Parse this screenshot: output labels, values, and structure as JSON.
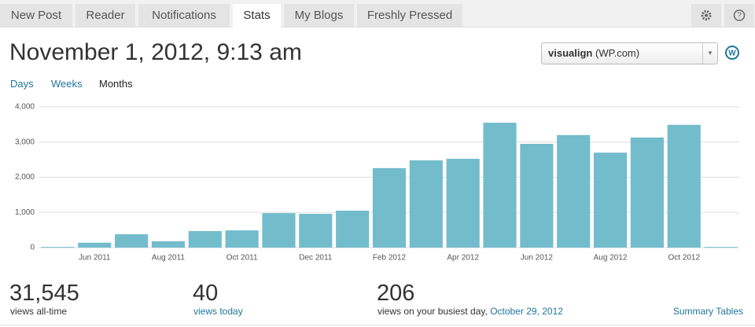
{
  "tabs": [
    "New Post",
    "Reader",
    "Notifications",
    "Stats",
    "My Blogs",
    "Freshly Pressed"
  ],
  "header": {
    "title": "November 1, 2012, 9:13 am"
  },
  "blog_select": {
    "name": "visualign",
    "host": "(WP.com)"
  },
  "periods": [
    "Days",
    "Weeks",
    "Months"
  ],
  "chart_data": {
    "type": "bar",
    "categories": [
      null,
      "Jun 2011",
      null,
      "Aug 2011",
      null,
      "Oct 2011",
      null,
      "Dec 2011",
      null,
      "Feb 2012",
      null,
      "Apr 2012",
      null,
      "Jun 2012",
      null,
      "Aug 2012",
      null,
      "Oct 2012",
      null
    ],
    "values": [
      20,
      140,
      380,
      180,
      470,
      490,
      980,
      960,
      1050,
      2260,
      2480,
      2525,
      3550,
      2950,
      3200,
      2700,
      3130,
      3490,
      20
    ],
    "color": "#73bccc",
    "ylim": [
      0,
      4000
    ],
    "yticks": [
      0,
      {
        "value": 1000,
        "label": "1,000"
      },
      {
        "value": 2000,
        "label": "2,000"
      },
      {
        "value": 3000,
        "label": "3,000"
      },
      {
        "value": 4000,
        "label": "4,000"
      }
    ],
    "grid": true
  },
  "summary": {
    "all_time": {
      "value": "31,545",
      "label": "views all-time"
    },
    "today": {
      "value": "40",
      "label": "views today"
    },
    "busiest": {
      "value": "206",
      "label": "views on your busiest day,",
      "date": "October 29, 2012"
    },
    "link": "Summary Tables"
  }
}
